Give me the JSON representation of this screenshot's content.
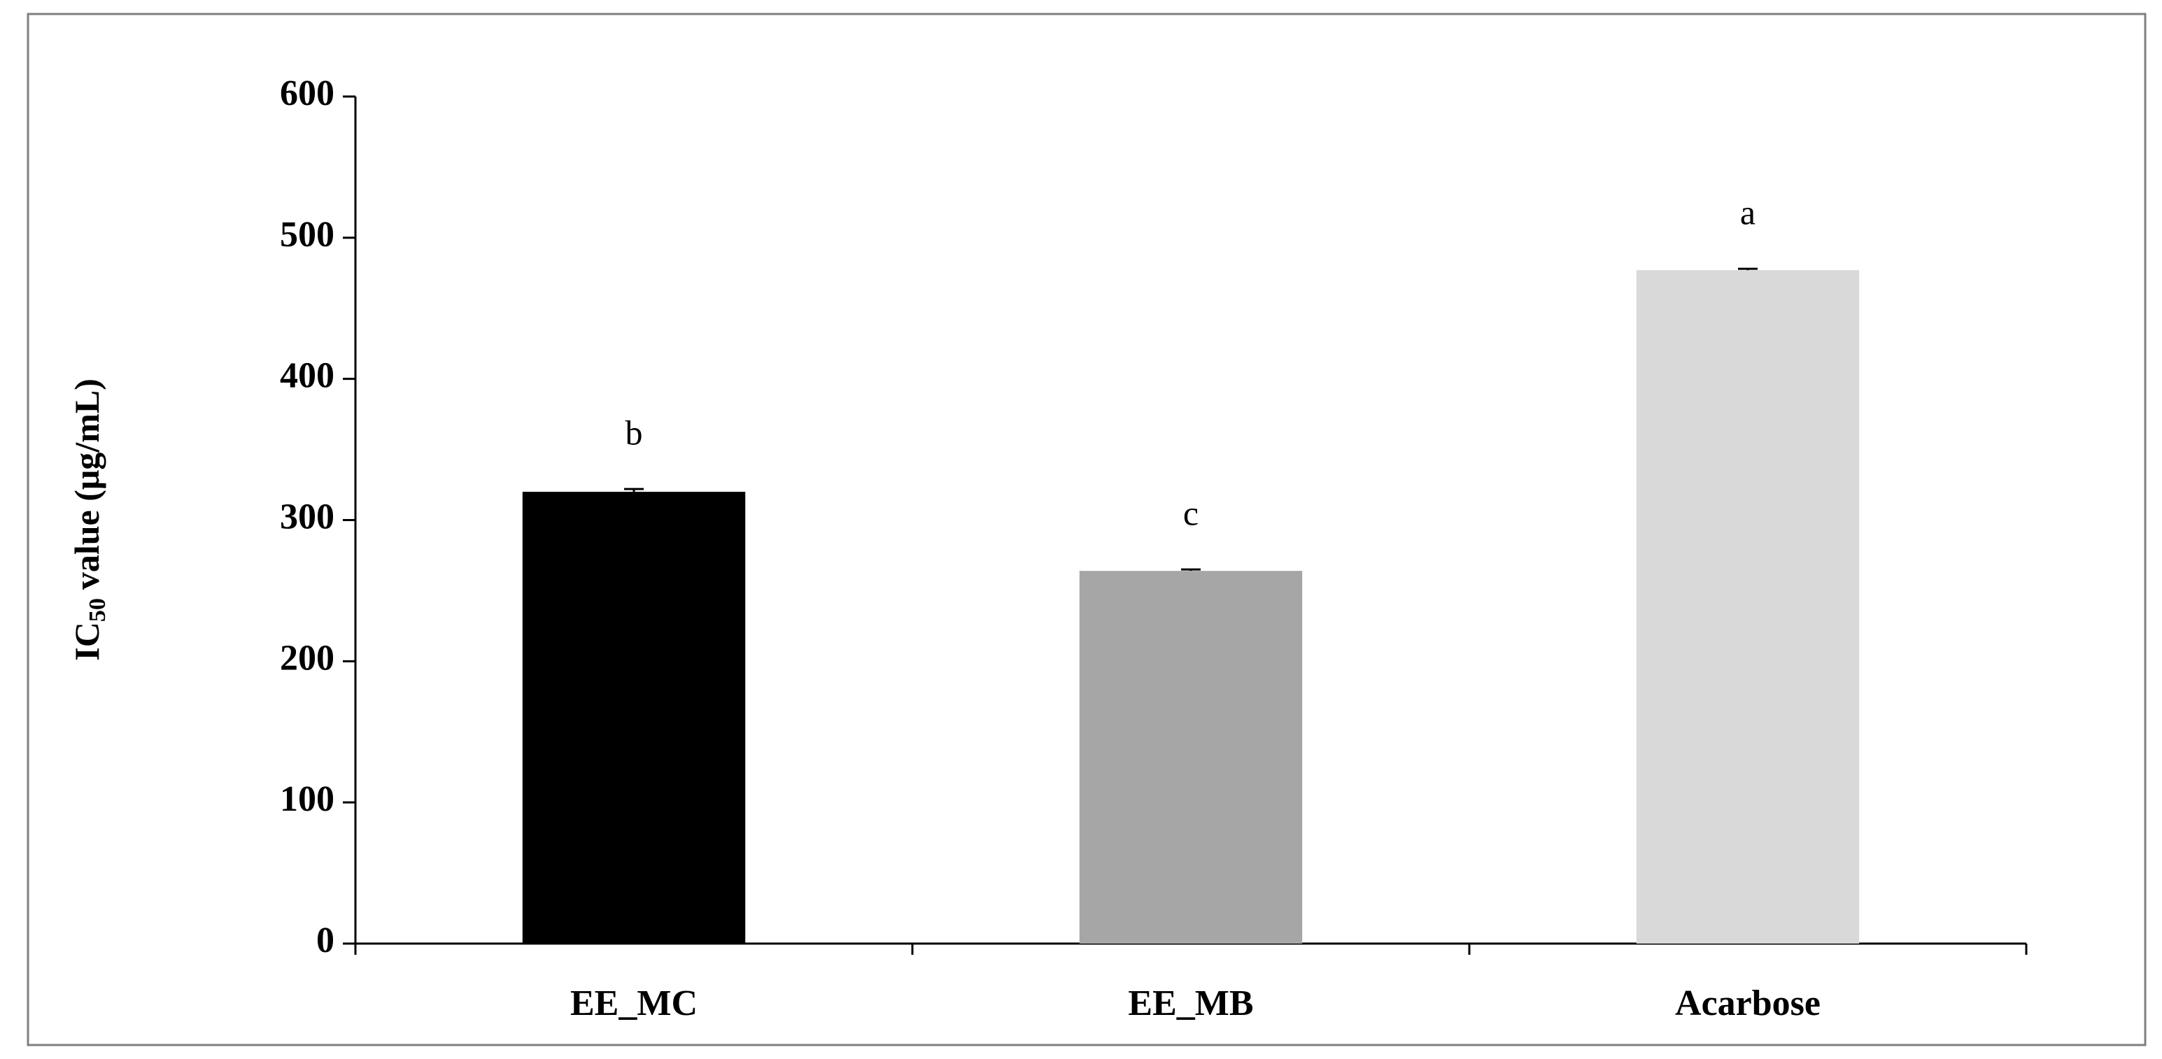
{
  "chart_data": {
    "type": "bar",
    "y_label": {
      "main": "IC",
      "subscript": "50",
      "rest": "value (μg/mL)"
    },
    "categories": [
      "EE_MC",
      "EE_MB",
      "Acarbose"
    ],
    "values": [
      320,
      264,
      477
    ],
    "errors": [
      2,
      1,
      1
    ],
    "annotations": [
      "b",
      "c",
      "a"
    ],
    "colors": [
      "#000000",
      "#a6a6a6",
      "#d9d9d9"
    ],
    "ylim": [
      0,
      600
    ],
    "yticks": [
      0,
      100,
      200,
      300,
      400,
      500,
      600
    ],
    "grid": false
  }
}
